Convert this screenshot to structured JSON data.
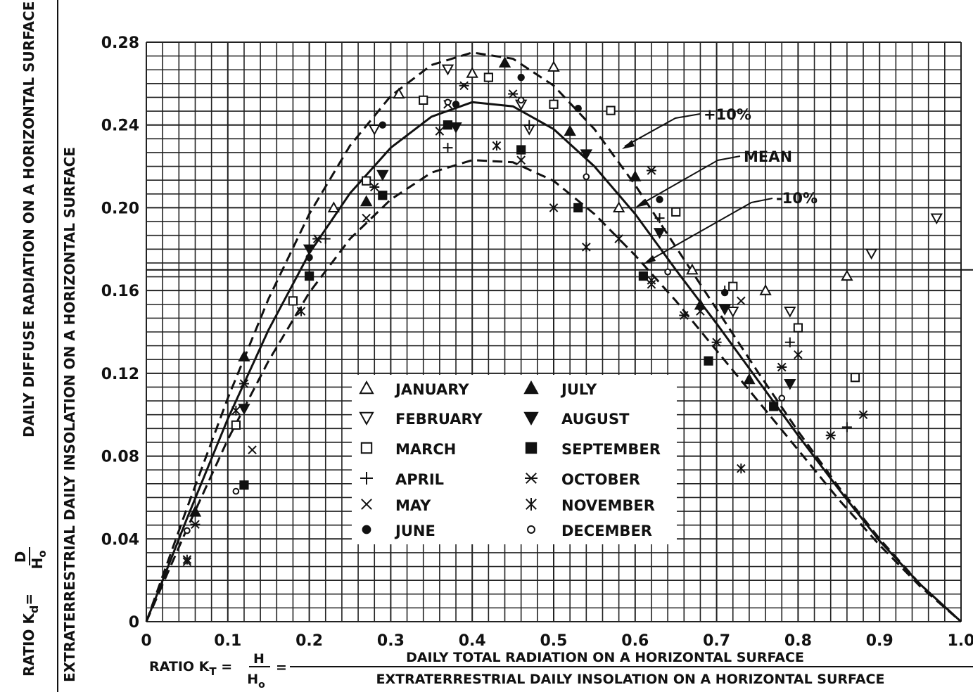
{
  "chart_data": {
    "type": "scatter",
    "xlim": [
      0,
      1.0
    ],
    "ylim": [
      0,
      0.28
    ],
    "grid": true,
    "x_ticks": [
      "0",
      "0.1",
      "0.2",
      "0.3",
      "0.4",
      "0.5",
      "0.6",
      "0.7",
      "0.8",
      "0.9",
      "1.0"
    ],
    "y_ticks": [
      "0",
      "0.04",
      "0.08",
      "0.12",
      "0.16",
      "0.20",
      "0.24",
      "0.28"
    ],
    "xlabel": {
      "prefix": "RATIO K",
      "sub": "T",
      "num": "H",
      "den": "H",
      "den_sub": "o",
      "line1": "DAILY TOTAL RADIATION ON A HORIZONTAL SURFACE",
      "line2": "EXTRATERRESTRIAL DAILY INSOLATION ON A HORIZONTAL SURFACE"
    },
    "ylabel": {
      "prefix": "RATIO K",
      "sub": "d",
      "num": "D",
      "den": "H",
      "den_sub": "o",
      "line1": "DAILY DIFFUSE RADIATION ON A HORIZONTAL SURFACE",
      "line2": "EXTRATERRESTRIAL DAILY INSOLATION ON A HORIZONTAL SURFACE"
    },
    "curves": [
      {
        "name": "MEAN",
        "style": "solid",
        "x": [
          0,
          0.05,
          0.1,
          0.15,
          0.2,
          0.25,
          0.3,
          0.35,
          0.4,
          0.45,
          0.5,
          0.55,
          0.6,
          0.65,
          0.7,
          0.75,
          0.8,
          0.85,
          0.9,
          0.95,
          1.0
        ],
        "y": [
          0,
          0.05,
          0.098,
          0.141,
          0.178,
          0.207,
          0.229,
          0.244,
          0.251,
          0.249,
          0.238,
          0.22,
          0.197,
          0.17,
          0.144,
          0.117,
          0.09,
          0.064,
          0.039,
          0.018,
          0.0
        ]
      },
      {
        "name": "+10%",
        "style": "dashed",
        "x": [
          0,
          0.05,
          0.1,
          0.15,
          0.2,
          0.25,
          0.3,
          0.35,
          0.4,
          0.45,
          0.5,
          0.55,
          0.6,
          0.65,
          0.7,
          0.75,
          0.8,
          0.85,
          0.9,
          0.95,
          1.0
        ],
        "y": [
          0,
          0.055,
          0.108,
          0.156,
          0.197,
          0.23,
          0.254,
          0.269,
          0.275,
          0.272,
          0.259,
          0.238,
          0.211,
          0.181,
          0.151,
          0.121,
          0.092,
          0.065,
          0.04,
          0.018,
          0.0
        ]
      },
      {
        "name": "-10%",
        "style": "dashed",
        "x": [
          0,
          0.05,
          0.1,
          0.15,
          0.2,
          0.25,
          0.3,
          0.35,
          0.4,
          0.45,
          0.5,
          0.55,
          0.6,
          0.65,
          0.7,
          0.75,
          0.8,
          0.85,
          0.9,
          0.95,
          1.0
        ],
        "y": [
          0,
          0.045,
          0.088,
          0.126,
          0.159,
          0.185,
          0.204,
          0.217,
          0.223,
          0.222,
          0.213,
          0.197,
          0.177,
          0.155,
          0.131,
          0.107,
          0.083,
          0.059,
          0.037,
          0.017,
          0.0
        ]
      }
    ],
    "annotations": [
      "+10%",
      "MEAN",
      "-10%"
    ],
    "legend": [
      {
        "label": "JANUARY",
        "marker": "tri-up-open"
      },
      {
        "label": "FEBRUARY",
        "marker": "tri-down-open"
      },
      {
        "label": "MARCH",
        "marker": "square-open"
      },
      {
        "label": "APRIL",
        "marker": "plus"
      },
      {
        "label": "MAY",
        "marker": "x"
      },
      {
        "label": "JUNE",
        "marker": "circle-filled"
      },
      {
        "label": "JULY",
        "marker": "tri-up-filled"
      },
      {
        "label": "AUGUST",
        "marker": "tri-down-filled"
      },
      {
        "label": "SEPTEMBER",
        "marker": "square-filled"
      },
      {
        "label": "OCTOBER",
        "marker": "x-bar"
      },
      {
        "label": "NOVEMBER",
        "marker": "asterisk"
      },
      {
        "label": "DECEMBER",
        "marker": "circle-open"
      }
    ],
    "series": [
      {
        "name": "JANUARY",
        "points": [
          [
            0.31,
            0.255
          ],
          [
            0.4,
            0.265
          ],
          [
            0.5,
            0.268
          ],
          [
            0.23,
            0.2
          ],
          [
            0.58,
            0.2
          ],
          [
            0.67,
            0.17
          ],
          [
            0.76,
            0.16
          ],
          [
            0.86,
            0.167
          ]
        ]
      },
      {
        "name": "FEBRUARY",
        "points": [
          [
            0.28,
            0.238
          ],
          [
            0.37,
            0.267
          ],
          [
            0.46,
            0.25
          ],
          [
            0.47,
            0.238
          ],
          [
            0.72,
            0.15
          ],
          [
            0.79,
            0.15
          ],
          [
            0.89,
            0.178
          ],
          [
            0.97,
            0.195
          ]
        ]
      },
      {
        "name": "MARCH",
        "points": [
          [
            0.27,
            0.213
          ],
          [
            0.34,
            0.252
          ],
          [
            0.42,
            0.263
          ],
          [
            0.5,
            0.25
          ],
          [
            0.57,
            0.247
          ],
          [
            0.18,
            0.155
          ],
          [
            0.11,
            0.095
          ],
          [
            0.65,
            0.198
          ],
          [
            0.72,
            0.162
          ],
          [
            0.8,
            0.142
          ],
          [
            0.87,
            0.118
          ]
        ]
      },
      {
        "name": "APRIL",
        "points": [
          [
            0.37,
            0.229
          ],
          [
            0.47,
            0.24
          ],
          [
            0.63,
            0.195
          ],
          [
            0.71,
            0.16
          ],
          [
            0.79,
            0.135
          ],
          [
            0.86,
            0.094
          ],
          [
            0.22,
            0.185
          ]
        ]
      },
      {
        "name": "MAY",
        "points": [
          [
            0.27,
            0.195
          ],
          [
            0.13,
            0.083
          ],
          [
            0.05,
            0.029
          ],
          [
            0.37,
            0.25
          ],
          [
            0.46,
            0.223
          ],
          [
            0.62,
            0.165
          ],
          [
            0.68,
            0.15
          ],
          [
            0.73,
            0.155
          ]
        ]
      },
      {
        "name": "JUNE",
        "points": [
          [
            0.29,
            0.24
          ],
          [
            0.38,
            0.25
          ],
          [
            0.46,
            0.263
          ],
          [
            0.53,
            0.248
          ],
          [
            0.2,
            0.176
          ],
          [
            0.63,
            0.204
          ],
          [
            0.71,
            0.159
          ]
        ]
      },
      {
        "name": "JULY",
        "points": [
          [
            0.44,
            0.27
          ],
          [
            0.52,
            0.237
          ],
          [
            0.6,
            0.215
          ],
          [
            0.68,
            0.153
          ],
          [
            0.74,
            0.117
          ],
          [
            0.27,
            0.203
          ],
          [
            0.12,
            0.128
          ],
          [
            0.06,
            0.053
          ]
        ]
      },
      {
        "name": "AUGUST",
        "points": [
          [
            0.38,
            0.239
          ],
          [
            0.29,
            0.216
          ],
          [
            0.54,
            0.226
          ],
          [
            0.63,
            0.188
          ],
          [
            0.71,
            0.151
          ],
          [
            0.79,
            0.115
          ],
          [
            0.12,
            0.103
          ],
          [
            0.2,
            0.18
          ]
        ]
      },
      {
        "name": "SEPTEMBER",
        "points": [
          [
            0.37,
            0.24
          ],
          [
            0.46,
            0.228
          ],
          [
            0.53,
            0.2
          ],
          [
            0.29,
            0.206
          ],
          [
            0.2,
            0.167
          ],
          [
            0.12,
            0.066
          ],
          [
            0.61,
            0.167
          ],
          [
            0.69,
            0.126
          ],
          [
            0.77,
            0.104
          ]
        ]
      },
      {
        "name": "OCTOBER",
        "points": [
          [
            0.28,
            0.21
          ],
          [
            0.21,
            0.185
          ],
          [
            0.12,
            0.115
          ],
          [
            0.06,
            0.047
          ],
          [
            0.39,
            0.259
          ],
          [
            0.45,
            0.255
          ],
          [
            0.62,
            0.218
          ],
          [
            0.66,
            0.148
          ],
          [
            0.7,
            0.135
          ],
          [
            0.78,
            0.123
          ],
          [
            0.84,
            0.09
          ],
          [
            0.88,
            0.1
          ]
        ]
      },
      {
        "name": "NOVEMBER",
        "points": [
          [
            0.36,
            0.237
          ],
          [
            0.43,
            0.23
          ],
          [
            0.5,
            0.2
          ],
          [
            0.54,
            0.181
          ],
          [
            0.58,
            0.185
          ],
          [
            0.19,
            0.15
          ],
          [
            0.11,
            0.102
          ],
          [
            0.05,
            0.03
          ],
          [
            0.73,
            0.074
          ],
          [
            0.8,
            0.129
          ],
          [
            0.62,
            0.163
          ]
        ]
      },
      {
        "name": "DECEMBER",
        "points": [
          [
            0.37,
            0.251
          ],
          [
            0.46,
            0.252
          ],
          [
            0.54,
            0.215
          ],
          [
            0.64,
            0.169
          ],
          [
            0.11,
            0.063
          ],
          [
            0.05,
            0.044
          ],
          [
            0.78,
            0.108
          ]
        ]
      }
    ]
  }
}
